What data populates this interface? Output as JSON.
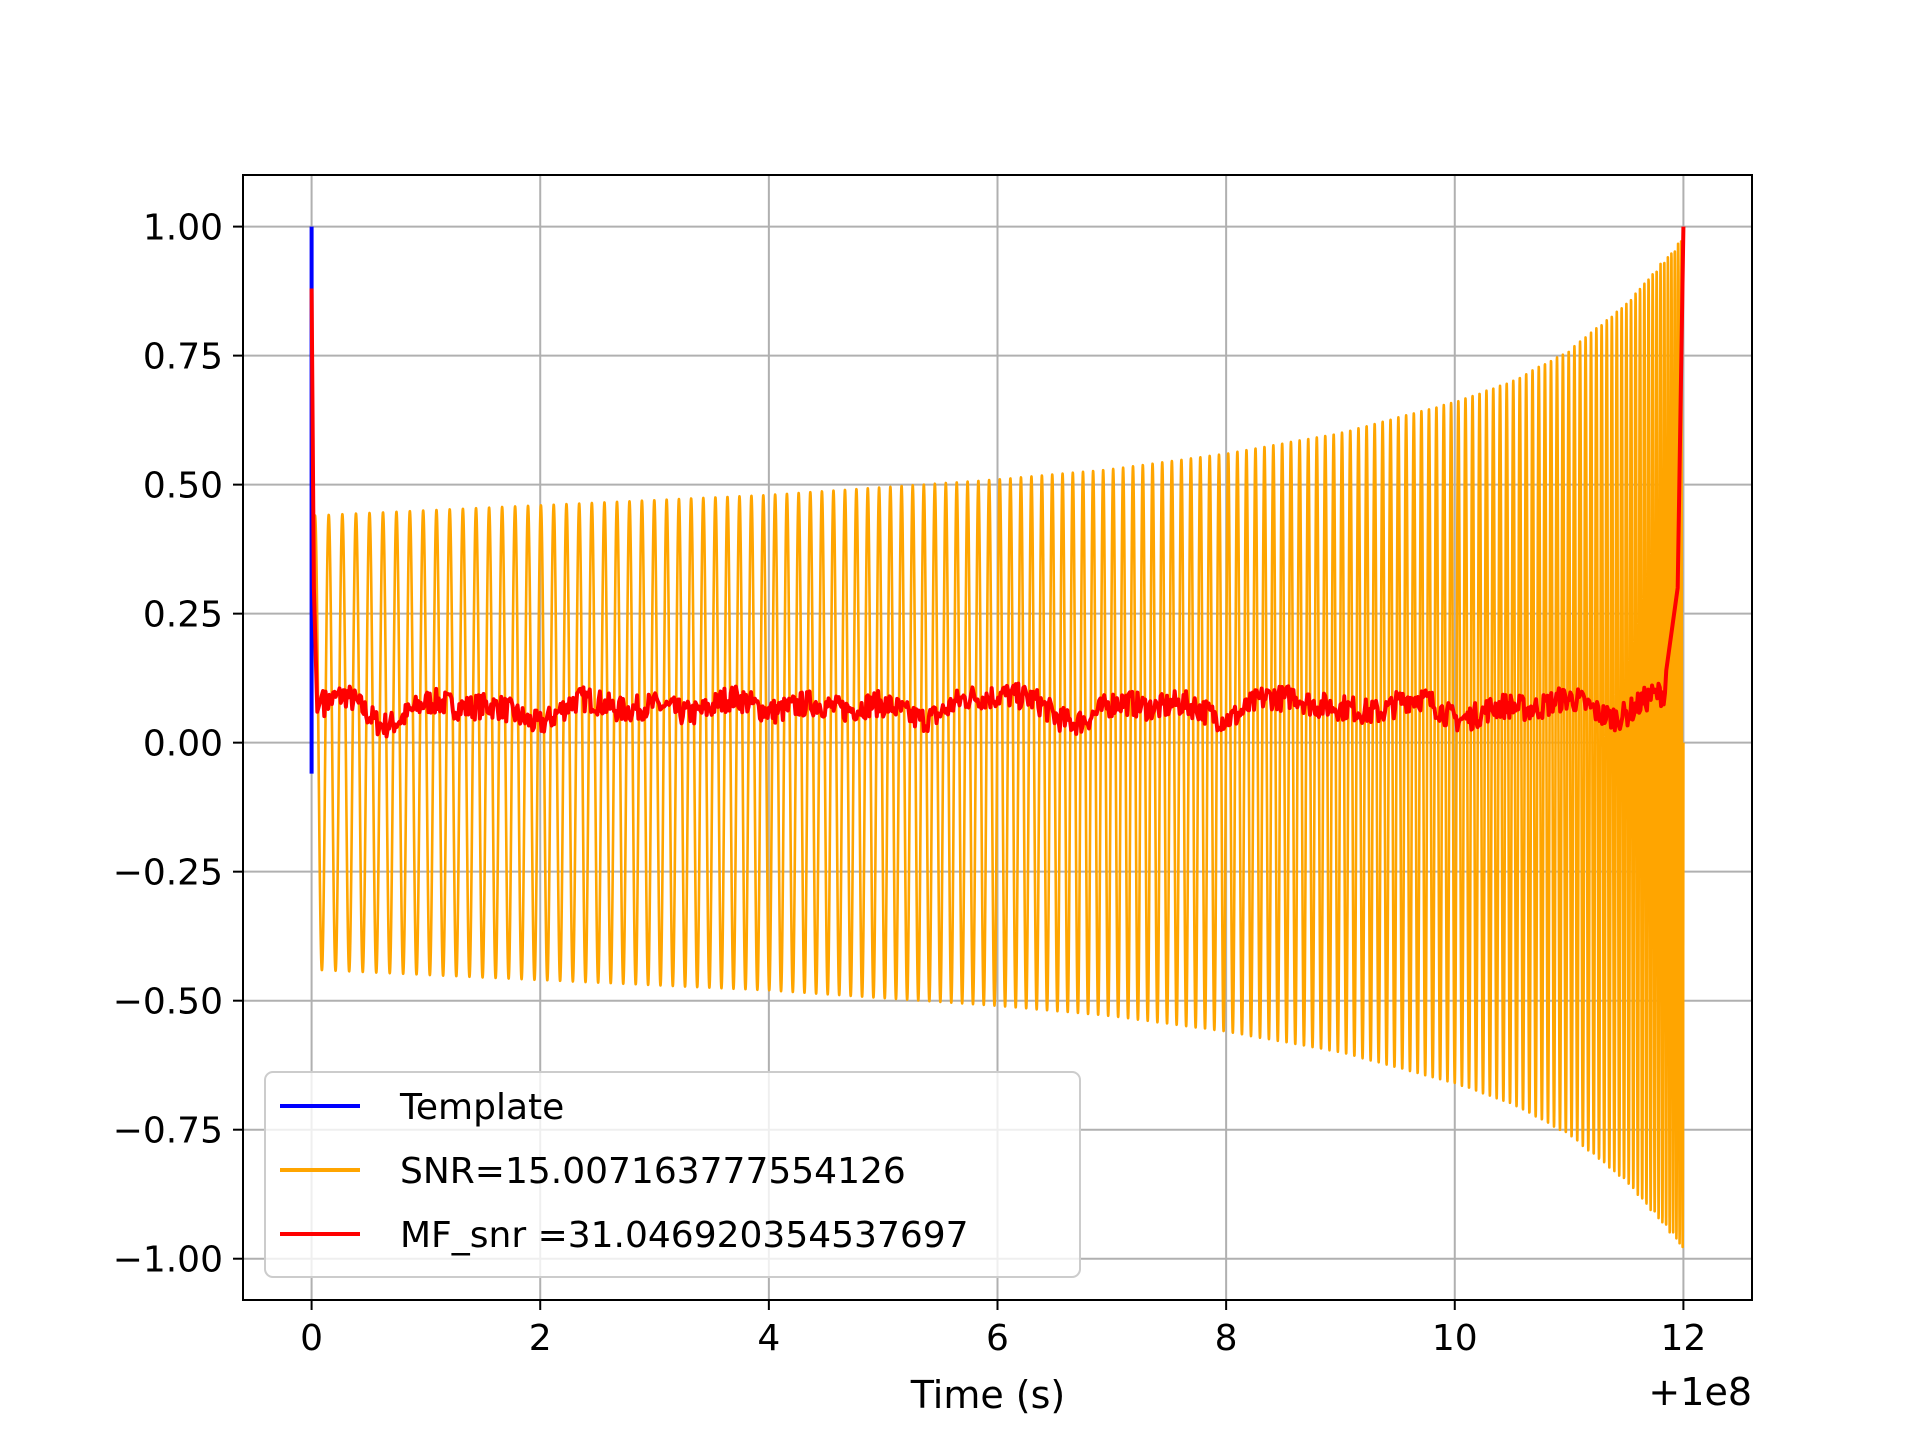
{
  "chart_data": {
    "type": "line",
    "title": "",
    "xlabel": "Time (s)",
    "ylabel": "",
    "x_offset_label": "+1e8",
    "xlim": [
      -0.6,
      12.6
    ],
    "ylim": [
      -1.08,
      1.1
    ],
    "grid": true,
    "legend_position": "lower-left",
    "xticks": [
      0,
      2,
      4,
      6,
      8,
      10,
      12
    ],
    "xtick_labels": [
      "0",
      "2",
      "4",
      "6",
      "8",
      "10",
      "12"
    ],
    "yticks": [
      1.0,
      0.75,
      0.5,
      0.25,
      0.0,
      -0.25,
      -0.5,
      -0.75,
      -1.0
    ],
    "ytick_labels": [
      "1.00",
      "0.75",
      "0.50",
      "0.25",
      "0.00",
      "−0.25",
      "−0.50",
      "−0.75",
      "−1.00"
    ],
    "series": [
      {
        "name": "Template",
        "color": "#0000ff",
        "description": "single spike at t≈0",
        "x": [
          0.0,
          0.0,
          0.0
        ],
        "y": [
          -0.06,
          1.0,
          -0.06
        ]
      },
      {
        "name": "SNR=15.007163777554126",
        "color": "#ffa500",
        "description": "chirp oscillation: amplitude grows from ~0.44 at t=0 to ~0.98 at t=12; roughly 150 cycles",
        "t_start": 0.0,
        "t_end": 12.0,
        "amplitude_envelope": {
          "t": [
            0,
            1,
            2,
            3,
            4,
            5,
            6,
            7,
            8,
            9,
            10,
            10.5,
            11,
            11.5,
            12
          ],
          "amp": [
            0.44,
            0.45,
            0.46,
            0.47,
            0.48,
            0.495,
            0.51,
            0.53,
            0.56,
            0.6,
            0.66,
            0.7,
            0.76,
            0.85,
            0.98
          ]
        },
        "cycles": 150
      },
      {
        "name": "MF_snr =31.046920354537697",
        "color": "#ff0000",
        "description": "matched filter output: peak 0.88 at t=0, noisy baseline 0–0.14, peak 1.0 at t=12",
        "x": [
          0.0,
          0.02,
          0.05,
          0.1,
          0.3,
          0.6,
          1.0,
          1.45,
          2.0,
          2.6,
          3.05,
          3.5,
          4.1,
          4.5,
          5.0,
          5.5,
          6.05,
          6.5,
          7.0,
          7.55,
          8.0,
          8.5,
          8.6,
          9.0,
          9.5,
          10.0,
          10.5,
          11.0,
          11.5,
          11.85,
          11.95,
          12.0
        ],
        "y": [
          0.88,
          0.3,
          0.06,
          0.1,
          0.12,
          0.06,
          0.08,
          0.1,
          0.06,
          0.1,
          0.1,
          0.08,
          0.11,
          0.1,
          0.07,
          0.09,
          0.14,
          0.07,
          0.08,
          0.1,
          0.08,
          0.1,
          0.14,
          0.09,
          0.1,
          0.07,
          0.1,
          0.09,
          0.09,
          0.14,
          0.3,
          1.0
        ]
      }
    ],
    "legend": [
      {
        "label": "Template",
        "color": "#0000ff"
      },
      {
        "label": "SNR=15.007163777554126",
        "color": "#ffa500"
      },
      {
        "label": "MF_snr =31.046920354537697",
        "color": "#ff0000"
      }
    ]
  }
}
